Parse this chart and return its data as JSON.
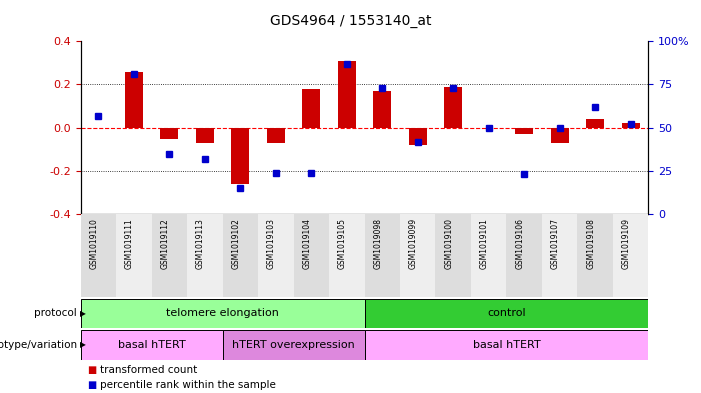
{
  "title": "GDS4964 / 1553140_at",
  "samples": [
    "GSM1019110",
    "GSM1019111",
    "GSM1019112",
    "GSM1019113",
    "GSM1019102",
    "GSM1019103",
    "GSM1019104",
    "GSM1019105",
    "GSM1019098",
    "GSM1019099",
    "GSM1019100",
    "GSM1019101",
    "GSM1019106",
    "GSM1019107",
    "GSM1019108",
    "GSM1019109"
  ],
  "bar_values": [
    0.0,
    0.26,
    -0.05,
    -0.07,
    -0.26,
    -0.07,
    0.18,
    0.31,
    0.17,
    -0.08,
    0.19,
    0.0,
    -0.03,
    -0.07,
    0.04,
    0.02
  ],
  "dot_values_pct": [
    57,
    81,
    35,
    32,
    15,
    24,
    24,
    87,
    73,
    42,
    73,
    50,
    23,
    50,
    62,
    52
  ],
  "bar_color": "#cc0000",
  "dot_color": "#0000cc",
  "ylim_left": [
    -0.4,
    0.4
  ],
  "ylim_right": [
    0,
    100
  ],
  "yticks_left": [
    -0.4,
    -0.2,
    0.0,
    0.2,
    0.4
  ],
  "yticks_right": [
    0,
    25,
    50,
    75,
    100
  ],
  "ytick_labels_right": [
    "0",
    "25",
    "50",
    "75",
    "100%"
  ],
  "hline_zero_color": "#ff0000",
  "hline_dotted_vals": [
    -0.2,
    0.2
  ],
  "protocol_groups": [
    {
      "label": "telomere elongation",
      "start": 0,
      "end": 7,
      "color": "#99ff99"
    },
    {
      "label": "control",
      "start": 8,
      "end": 15,
      "color": "#33cc33"
    }
  ],
  "genotype_groups": [
    {
      "label": "basal hTERT",
      "start": 0,
      "end": 3,
      "color": "#ffaaff"
    },
    {
      "label": "hTERT overexpression",
      "start": 4,
      "end": 7,
      "color": "#dd88dd"
    },
    {
      "label": "basal hTERT",
      "start": 8,
      "end": 15,
      "color": "#ffaaff"
    }
  ],
  "legend_items": [
    {
      "color": "#cc0000",
      "label": "transformed count"
    },
    {
      "color": "#0000cc",
      "label": "percentile rank within the sample"
    }
  ],
  "bg_color": "#ffffff",
  "tick_label_color_left": "#cc0000",
  "tick_label_color_right": "#0000cc",
  "xtick_bg_even": "#dddddd",
  "xtick_bg_odd": "#eeeeee"
}
